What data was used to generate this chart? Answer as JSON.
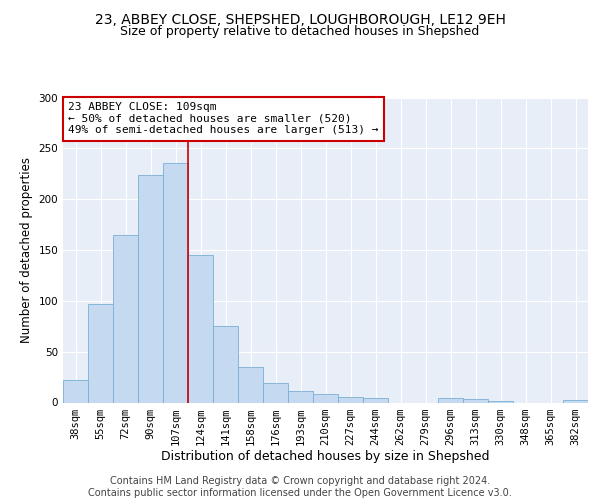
{
  "title1": "23, ABBEY CLOSE, SHEPSHED, LOUGHBOROUGH, LE12 9EH",
  "title2": "Size of property relative to detached houses in Shepshed",
  "xlabel": "Distribution of detached houses by size in Shepshed",
  "ylabel": "Number of detached properties",
  "bar_labels": [
    "38sqm",
    "55sqm",
    "72sqm",
    "90sqm",
    "107sqm",
    "124sqm",
    "141sqm",
    "158sqm",
    "176sqm",
    "193sqm",
    "210sqm",
    "227sqm",
    "244sqm",
    "262sqm",
    "279sqm",
    "296sqm",
    "313sqm",
    "330sqm",
    "348sqm",
    "365sqm",
    "382sqm"
  ],
  "bar_values": [
    22,
    97,
    165,
    224,
    236,
    145,
    75,
    35,
    19,
    11,
    8,
    5,
    4,
    0,
    0,
    4,
    3,
    1,
    0,
    0,
    2
  ],
  "bar_color": "#c5d9f0",
  "bar_edge_color": "#7aafd4",
  "background_color": "#e8eef8",
  "grid_color": "#ffffff",
  "annotation_text": "23 ABBEY CLOSE: 109sqm\n← 50% of detached houses are smaller (520)\n49% of semi-detached houses are larger (513) →",
  "annotation_box_color": "#ffffff",
  "annotation_box_edge_color": "#cc0000",
  "vline_color": "#cc0000",
  "vline_bar_index": 4,
  "ylim": [
    0,
    300
  ],
  "yticks": [
    0,
    50,
    100,
    150,
    200,
    250,
    300
  ],
  "footer_text": "Contains HM Land Registry data © Crown copyright and database right 2024.\nContains public sector information licensed under the Open Government Licence v3.0.",
  "title1_fontsize": 10,
  "title2_fontsize": 9,
  "xlabel_fontsize": 9,
  "ylabel_fontsize": 8.5,
  "tick_fontsize": 7.5,
  "annotation_fontsize": 8,
  "footer_fontsize": 7
}
